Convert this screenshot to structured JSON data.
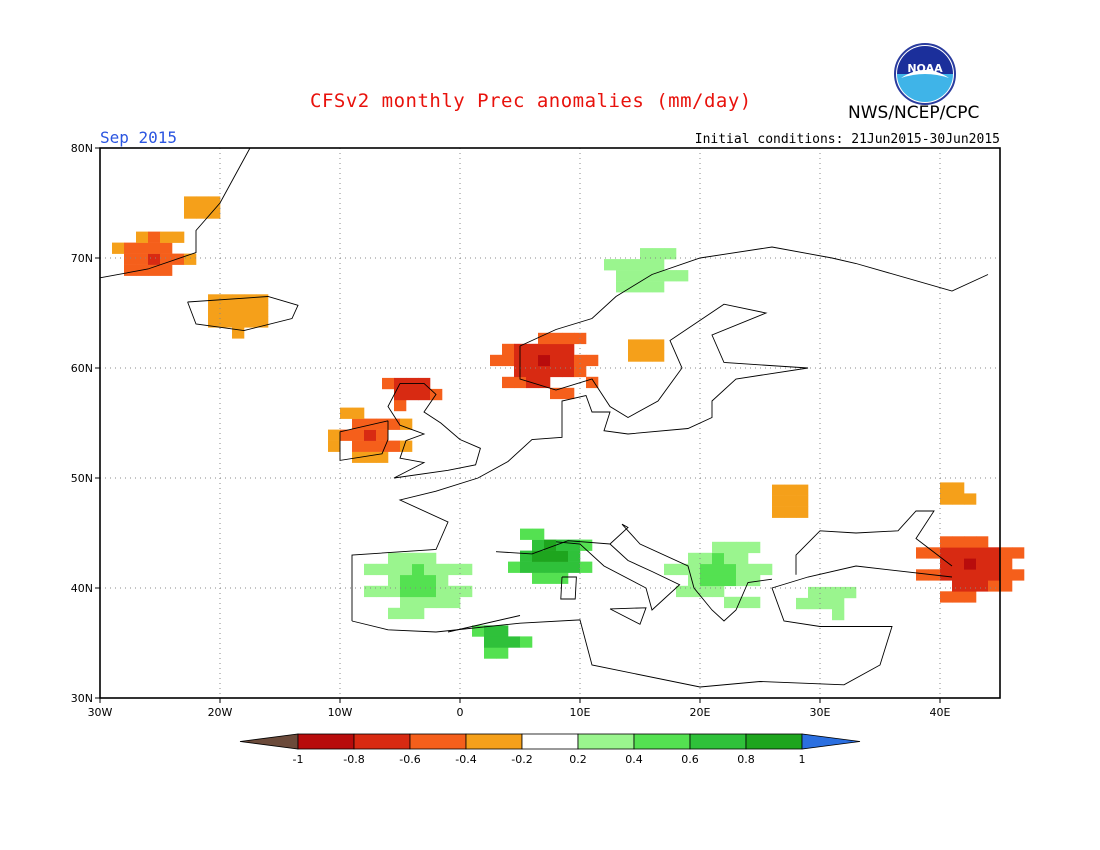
{
  "title": "CFSv2 monthly Prec anomalies (mm/day)",
  "month_label": "Sep 2015",
  "initial_conditions": "Initial conditions: 21Jun2015-30Jun2015",
  "agency": "NWS/NCEP/CPC",
  "logo_text": "NOAA",
  "map": {
    "lon_range": [
      -30,
      45
    ],
    "lat_range": [
      30,
      80
    ],
    "grid": true,
    "lat_ticks": [
      "80N",
      "70N",
      "60N",
      "50N",
      "40N",
      "30N"
    ],
    "lon_ticks": [
      "30W",
      "20W",
      "10W",
      "0",
      "10E",
      "20E",
      "30E",
      "40E"
    ]
  },
  "colorbar": {
    "labels": [
      "-1",
      "-0.8",
      "-0.6",
      "-0.4",
      "-0.2",
      "0.2",
      "0.4",
      "0.6",
      "0.8",
      "1"
    ],
    "colors": [
      "#6b4a3a",
      "#b80c0c",
      "#d82a12",
      "#f55f1b",
      "#f5a01a",
      "#ffffff",
      "#9af58e",
      "#54e151",
      "#2fc13a",
      "#1ea51e",
      "#2b6fe0"
    ]
  },
  "anomaly_regions": [
    {
      "name": "greenland-east",
      "value": -0.3,
      "lon": -22,
      "lat": 74
    },
    {
      "name": "greenland-sw",
      "value": -0.7,
      "lon": -26,
      "lat": 69.5
    },
    {
      "name": "iceland",
      "value": -0.3,
      "lon": -19,
      "lat": 64.5
    },
    {
      "name": "scotland",
      "value": -0.9,
      "lon": -4.5,
      "lat": 57.5
    },
    {
      "name": "ireland",
      "value": -0.7,
      "lon": -8,
      "lat": 53.5
    },
    {
      "name": "norway-south",
      "value": -0.9,
      "lon": 6.5,
      "lat": 60
    },
    {
      "name": "sweden-central",
      "value": -0.3,
      "lon": 15,
      "lat": 61
    },
    {
      "name": "norway-north",
      "value": 0.4,
      "lon": 15,
      "lat": 68
    },
    {
      "name": "iberia",
      "value": 0.5,
      "lon": -4,
      "lat": 40
    },
    {
      "name": "north-africa",
      "value": 0.9,
      "lon": 3,
      "lat": 35
    },
    {
      "name": "western-med",
      "value": 1.0,
      "lon": 7,
      "lat": 42.5
    },
    {
      "name": "balkans",
      "value": 0.5,
      "lon": 21,
      "lat": 41
    },
    {
      "name": "turkey",
      "value": 0.4,
      "lon": 30,
      "lat": 38.5
    },
    {
      "name": "ukraine",
      "value": -0.3,
      "lon": 27,
      "lat": 47.5
    },
    {
      "name": "caucasus",
      "value": -0.9,
      "lon": 42,
      "lat": 41.5
    },
    {
      "name": "russia-east",
      "value": -0.3,
      "lon": 41,
      "lat": 48
    }
  ]
}
